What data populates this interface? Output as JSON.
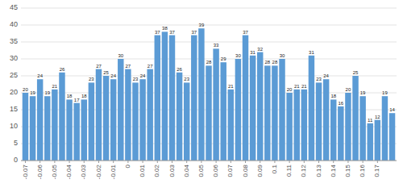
{
  "chart_data": {
    "type": "bar",
    "x": [
      -0.07,
      -0.065,
      -0.06,
      -0.055,
      -0.05,
      -0.045,
      -0.04,
      -0.035,
      -0.03,
      -0.025,
      -0.02,
      -0.015,
      -0.01,
      -0.005,
      0,
      0.005,
      0.01,
      0.015,
      0.02,
      0.025,
      0.03,
      0.035,
      0.04,
      0.045,
      0.05,
      0.055,
      0.06,
      0.065,
      0.07,
      0.075,
      0.08,
      0.085,
      0.09,
      0.095,
      0.1,
      0.105,
      0.11,
      0.115,
      0.12,
      0.125,
      0.13,
      0.135,
      0.14,
      0.145,
      0.15,
      0.155,
      0.16,
      0.165,
      0.17,
      0.175,
      0.18
    ],
    "values": [
      20,
      19,
      24,
      19,
      21,
      26,
      18,
      17,
      18,
      23,
      27,
      25,
      24,
      30,
      27,
      23,
      24,
      27,
      37,
      38,
      37,
      26,
      23,
      37,
      39,
      28,
      33,
      29,
      21,
      30,
      37,
      31,
      32,
      28,
      28,
      30,
      20,
      21,
      21,
      31,
      23,
      24,
      18,
      16,
      20,
      25,
      19,
      11,
      12,
      19,
      14
    ],
    "color": "#5B9BD5",
    "xlim": [
      -0.073,
      0.183
    ],
    "xticks": [
      -0.07,
      -0.06,
      -0.05,
      -0.04,
      -0.03,
      -0.02,
      -0.01,
      0,
      0.01,
      0.02,
      0.03,
      0.04,
      0.05,
      0.06,
      0.07,
      0.08,
      0.09,
      0.1,
      0.11,
      0.12,
      0.13,
      0.14,
      0.15,
      0.16,
      0.17
    ],
    "ylim": [
      0,
      45
    ],
    "yticks": [
      0,
      5,
      10,
      15,
      20,
      25,
      30,
      35,
      40,
      45
    ],
    "grid": true,
    "data_labels": true
  }
}
